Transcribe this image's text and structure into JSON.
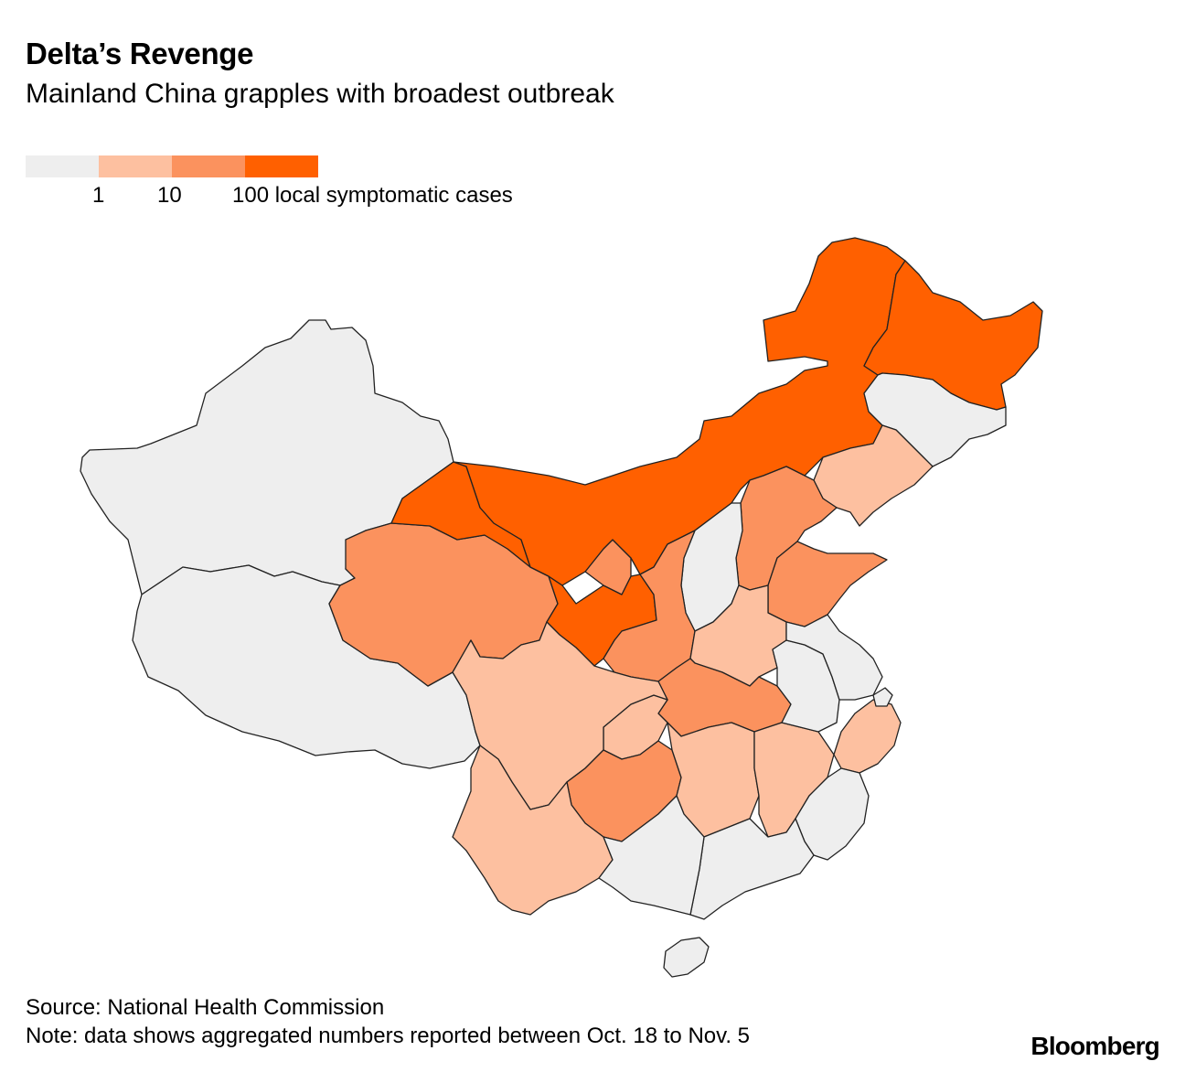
{
  "title": "Delta’s Revenge",
  "subtitle": "Mainland China grapples with broadest outbreak",
  "legend": {
    "colors": [
      "#eeeeee",
      "#fdc0a0",
      "#fb925e",
      "#ff6000"
    ],
    "labels": [
      "1",
      "10",
      "100 local symptomatic cases"
    ]
  },
  "map": {
    "levels": {
      "xinjiang": 0,
      "tibet": 0,
      "qinghai": 2,
      "gansu": 3,
      "ningxia": 2,
      "inner_mongolia": 3,
      "heilongjiang": 3,
      "jilin": 0,
      "liaoning": 1,
      "beijing": 2,
      "tianjin": 0,
      "hebei": 2,
      "shanxi": 0,
      "shaanxi": 2,
      "shandong": 2,
      "henan": 1,
      "hubei": 2,
      "chongqing": 1,
      "sichuan": 1,
      "guizhou": 2,
      "yunnan": 1,
      "hunan": 1,
      "jiangxi": 1,
      "zhejiang": 1,
      "anhui": 0,
      "jiangsu": 0,
      "shanghai": 0,
      "fujian": 0,
      "guangdong": 0,
      "guangxi": 0,
      "hainan": 0
    }
  },
  "footer": {
    "source": "Source: National Health Commission",
    "note": "Note: data shows aggregated numbers reported between Oct. 18 to Nov. 5",
    "brand": "Bloomberg"
  }
}
